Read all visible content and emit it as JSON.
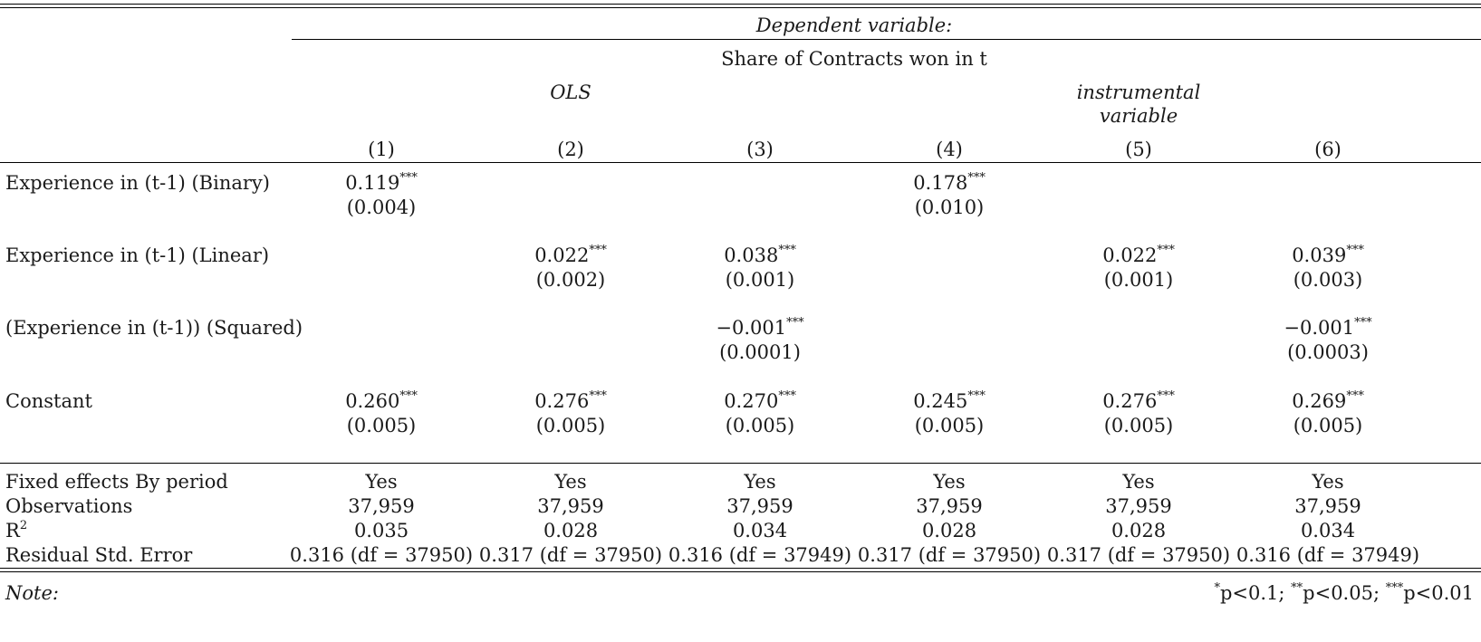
{
  "header": {
    "dependent_variable": "Dependent variable:",
    "outcome": "Share of Contracts won in t",
    "groups": [
      {
        "label": "OLS"
      },
      {
        "label_line1": "instrumental",
        "label_line2": "variable"
      }
    ],
    "col_numbers": [
      "(1)",
      "(2)",
      "(3)",
      "(4)",
      "(5)",
      "(6)"
    ]
  },
  "rows": [
    {
      "label": "Experience in (t-1) (Binary)",
      "coefs": [
        {
          "v": "0.119",
          "s": "***"
        },
        {
          "v": "",
          "s": ""
        },
        {
          "v": "",
          "s": ""
        },
        {
          "v": "0.178",
          "s": "***"
        },
        {
          "v": "",
          "s": ""
        },
        {
          "v": "",
          "s": ""
        }
      ],
      "ses": [
        "(0.004)",
        "",
        "",
        "(0.010)",
        "",
        ""
      ]
    },
    {
      "label": "Experience in (t-1) (Linear)",
      "coefs": [
        {
          "v": "",
          "s": ""
        },
        {
          "v": "0.022",
          "s": "***"
        },
        {
          "v": "0.038",
          "s": "***"
        },
        {
          "v": "",
          "s": ""
        },
        {
          "v": "0.022",
          "s": "***"
        },
        {
          "v": "0.039",
          "s": "***"
        }
      ],
      "ses": [
        "",
        "(0.002)",
        "(0.001)",
        "",
        "(0.001)",
        "(0.003)"
      ]
    },
    {
      "label": "(Experience in (t-1)) (Squared)",
      "coefs": [
        {
          "v": "",
          "s": ""
        },
        {
          "v": "",
          "s": ""
        },
        {
          "v": "−0.001",
          "s": "***"
        },
        {
          "v": "",
          "s": ""
        },
        {
          "v": "",
          "s": ""
        },
        {
          "v": "−0.001",
          "s": "***"
        }
      ],
      "ses": [
        "",
        "",
        "(0.0001)",
        "",
        "",
        "(0.0003)"
      ]
    },
    {
      "label": "Constant",
      "coefs": [
        {
          "v": "0.260",
          "s": "***"
        },
        {
          "v": "0.276",
          "s": "***"
        },
        {
          "v": "0.270",
          "s": "***"
        },
        {
          "v": "0.245",
          "s": "***"
        },
        {
          "v": "0.276",
          "s": "***"
        },
        {
          "v": "0.269",
          "s": "***"
        }
      ],
      "ses": [
        "(0.005)",
        "(0.005)",
        "(0.005)",
        "(0.005)",
        "(0.005)",
        "(0.005)"
      ]
    }
  ],
  "stats": [
    {
      "label": "Fixed effects By period",
      "values": [
        "Yes",
        "Yes",
        "Yes",
        "Yes",
        "Yes",
        "Yes"
      ]
    },
    {
      "label": "Observations",
      "values": [
        "37,959",
        "37,959",
        "37,959",
        "37,959",
        "37,959",
        "37,959"
      ]
    },
    {
      "label_base": "R",
      "label_sup": "2",
      "values": [
        "0.035",
        "0.028",
        "0.034",
        "0.028",
        "0.028",
        "0.034"
      ]
    },
    {
      "label": "Residual Std. Error",
      "values": [
        "0.316 (df = 37950)",
        "0.317 (df = 37950)",
        "0.316 (df = 37949)",
        "0.317 (df = 37950)",
        "0.317 (df = 37950)",
        "0.316 (df = 37949)"
      ]
    }
  ],
  "notes": {
    "label": "Note:",
    "sig": [
      {
        "stars": "*",
        "text": "p<0.1; "
      },
      {
        "stars": "**",
        "text": "p<0.05; "
      },
      {
        "stars": "***",
        "text": "p<0.01"
      }
    ]
  }
}
